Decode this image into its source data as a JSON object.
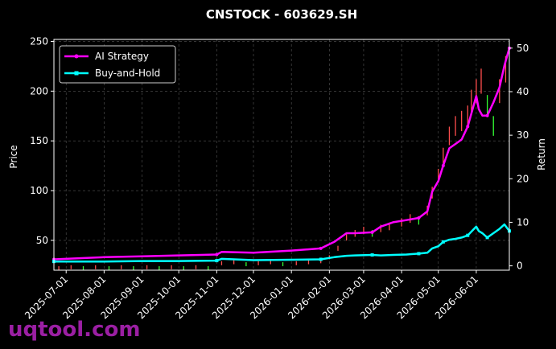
{
  "chart_data": {
    "type": "line",
    "title": "CNSTOCK - 603629.SH",
    "xlabel": "",
    "ylabel": "Price",
    "y2label": "Return",
    "ylim": [
      20,
      252
    ],
    "y2lim": [
      -1,
      52
    ],
    "xlim": [
      "2025-06-21",
      "2026-06-28"
    ],
    "grid": true,
    "legend_position": "top-left",
    "x_ticks": [
      "2025-07-01",
      "2025-08-01",
      "2025-09-01",
      "2025-10-01",
      "2025-11-01",
      "2025-12-01",
      "2026-01-01",
      "2026-02-01",
      "2026-03-01",
      "2026-04-01",
      "2026-05-01",
      "2026-06-01"
    ],
    "y_ticks": [
      50,
      100,
      150,
      200,
      250
    ],
    "y2_ticks": [
      0,
      10,
      20,
      30,
      40,
      50
    ],
    "price_candles": {
      "up_color": "#ff4d4d",
      "down_color": "#33ff33",
      "x": [
        "2025-06-25",
        "2025-07-05",
        "2025-07-15",
        "2025-07-25",
        "2025-08-05",
        "2025-08-15",
        "2025-08-25",
        "2025-09-05",
        "2025-09-15",
        "2025-09-25",
        "2025-10-05",
        "2025-10-15",
        "2025-10-25",
        "2025-11-05",
        "2025-11-15",
        "2025-11-25",
        "2025-12-05",
        "2025-12-15",
        "2025-12-25",
        "2026-01-05",
        "2026-01-15",
        "2026-01-25",
        "2026-02-01",
        "2026-02-08",
        "2026-02-15",
        "2026-02-22",
        "2026-03-01",
        "2026-03-08",
        "2026-03-15",
        "2026-03-22",
        "2026-04-01",
        "2026-04-08",
        "2026-04-15",
        "2026-04-22",
        "2026-04-26",
        "2026-05-01",
        "2026-05-05",
        "2026-05-10",
        "2026-05-15",
        "2026-05-20",
        "2026-05-25",
        "2026-05-28",
        "2026-06-01",
        "2026-06-05",
        "2026-06-10",
        "2026-06-15",
        "2026-06-20",
        "2026-06-25"
      ],
      "close": [
        22,
        23,
        22,
        23,
        22,
        23,
        22,
        23,
        22,
        23,
        22,
        23,
        22,
        27,
        28,
        26,
        27,
        28,
        26,
        27,
        28,
        29,
        33,
        42,
        53,
        57,
        60,
        57,
        62,
        64,
        68,
        72,
        70,
        80,
        98,
        115,
        135,
        155,
        165,
        170,
        175,
        190,
        200,
        210,
        185,
        165,
        200,
        222
      ]
    },
    "series": [
      {
        "name": "AI Strategy",
        "color": "#ff00ff",
        "axis": "right",
        "x": [
          "2025-06-21",
          "2025-08-01",
          "2025-09-01",
          "2025-10-01",
          "2025-11-01",
          "2025-11-05",
          "2025-12-01",
          "2026-01-01",
          "2026-01-25",
          "2026-02-05",
          "2026-02-15",
          "2026-02-22",
          "2026-03-08",
          "2026-03-15",
          "2026-03-25",
          "2026-04-05",
          "2026-04-15",
          "2026-04-22",
          "2026-04-26",
          "2026-05-01",
          "2026-05-05",
          "2026-05-10",
          "2026-05-15",
          "2026-05-20",
          "2026-05-25",
          "2026-06-01",
          "2026-06-03",
          "2026-06-06",
          "2026-06-10",
          "2026-06-15",
          "2026-06-20",
          "2026-06-24",
          "2026-06-28"
        ],
        "values": [
          1.5,
          2.0,
          2.2,
          2.4,
          2.6,
          3.2,
          3.0,
          3.5,
          4.0,
          5.5,
          7.5,
          7.5,
          7.7,
          9.0,
          10.0,
          10.5,
          11.0,
          12.5,
          17.0,
          19.5,
          23.0,
          27.0,
          28.0,
          29.0,
          32.0,
          39.0,
          36.0,
          34.5,
          34.5,
          37.5,
          41.0,
          46.0,
          50.0
        ]
      },
      {
        "name": "Buy-and-Hold",
        "color": "#00ffff",
        "axis": "right",
        "x": [
          "2025-06-21",
          "2025-08-01",
          "2025-09-01",
          "2025-10-01",
          "2025-11-01",
          "2025-11-05",
          "2025-12-01",
          "2026-01-01",
          "2026-01-25",
          "2026-02-05",
          "2026-02-15",
          "2026-02-22",
          "2026-03-08",
          "2026-03-15",
          "2026-03-25",
          "2026-04-05",
          "2026-04-15",
          "2026-04-22",
          "2026-04-26",
          "2026-05-01",
          "2026-05-05",
          "2026-05-10",
          "2026-05-15",
          "2026-05-20",
          "2026-05-25",
          "2026-06-01",
          "2026-06-03",
          "2026-06-06",
          "2026-06-10",
          "2026-06-15",
          "2026-06-20",
          "2026-06-24",
          "2026-06-28"
        ],
        "values": [
          1.0,
          1.0,
          1.1,
          1.1,
          1.2,
          1.6,
          1.3,
          1.4,
          1.5,
          2.0,
          2.3,
          2.4,
          2.5,
          2.4,
          2.5,
          2.6,
          2.8,
          3.0,
          4.0,
          4.5,
          5.5,
          6.0,
          6.2,
          6.5,
          7.0,
          9.0,
          8.0,
          7.5,
          6.5,
          7.5,
          8.5,
          9.5,
          8.0
        ]
      }
    ]
  },
  "watermark": "uqtool.com"
}
